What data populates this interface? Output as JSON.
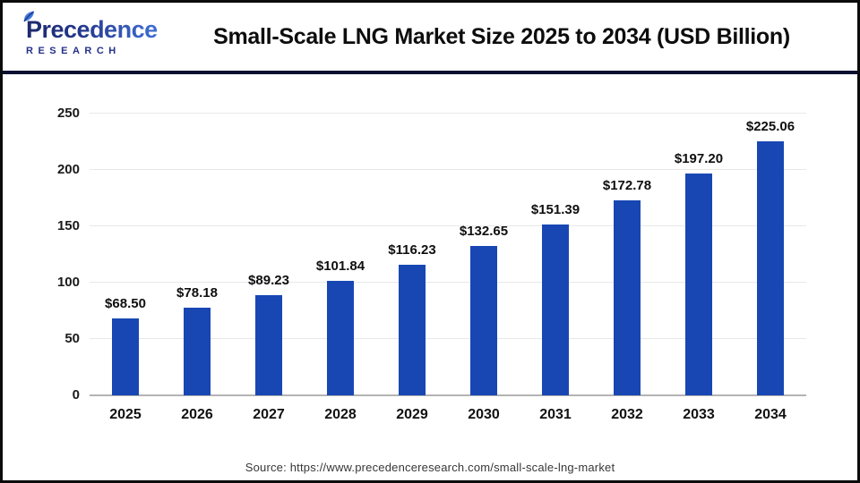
{
  "header": {
    "logo": {
      "brand": "Precedence",
      "brand_sub": "RESEARCH",
      "leaf_icon": "leaf-icon",
      "brand_color_dark": "#1d2a6e",
      "brand_color_light": "#3f6fd6"
    },
    "title": "Small-Scale LNG Market Size 2025 to 2034 (USD Billion)"
  },
  "chart_data": {
    "type": "bar",
    "title": "Small-Scale LNG Market Size 2025 to 2034 (USD Billion)",
    "categories": [
      "2025",
      "2026",
      "2027",
      "2028",
      "2029",
      "2030",
      "2031",
      "2032",
      "2033",
      "2034"
    ],
    "values": [
      68.5,
      78.18,
      89.23,
      101.84,
      116.23,
      132.65,
      151.39,
      172.78,
      197.2,
      225.06
    ],
    "value_labels": [
      "$68.50",
      "$78.18",
      "$89.23",
      "$101.84",
      "$116.23",
      "$132.65",
      "$151.39",
      "$172.78",
      "$197.20",
      "$225.06"
    ],
    "xlabel": "",
    "ylabel": "",
    "ylim": [
      0,
      250
    ],
    "yticks": [
      0,
      50,
      100,
      150,
      200,
      250
    ],
    "grid": true,
    "legend": false,
    "bar_color": "#1847b4",
    "gridline_color": "#e8e8e8",
    "baseline_color": "#b3b3b3"
  },
  "footer": {
    "source_text": "Source: https://www.precedenceresearch.com/small-scale-lng-market"
  },
  "colors": {
    "divider_navy": "#0a1030",
    "frame_border": "#0b0b0b",
    "background": "#ffffff"
  }
}
